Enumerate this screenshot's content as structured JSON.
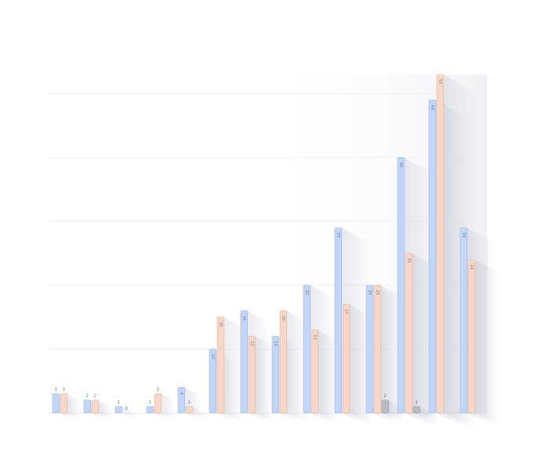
{
  "chart_data": {
    "type": "bar",
    "categories": [
      "",
      "",
      "",
      "",
      "",
      "",
      "",
      "",
      "",
      "",
      "",
      "",
      "",
      ""
    ],
    "series": [
      {
        "values": [
          3,
          2,
          1,
          1,
          4,
          10,
          16,
          12,
          20,
          29,
          20,
          40,
          49,
          29
        ],
        "color": "#c3d5f8",
        "stroke": "#9ab6ea"
      },
      {
        "values": [
          3,
          2,
          0,
          3,
          1,
          15,
          12,
          16,
          13,
          17,
          20,
          25,
          53,
          24
        ],
        "color": "#f9d7c6",
        "stroke": "#e8b49c"
      },
      {
        "values": [
          null,
          null,
          null,
          null,
          null,
          null,
          null,
          null,
          null,
          null,
          2,
          1,
          null,
          null
        ],
        "color": "#b9bcc6",
        "stroke": "#9a9eab"
      }
    ],
    "ylim": [
      0,
      53
    ],
    "grid": true,
    "legend": "none"
  }
}
